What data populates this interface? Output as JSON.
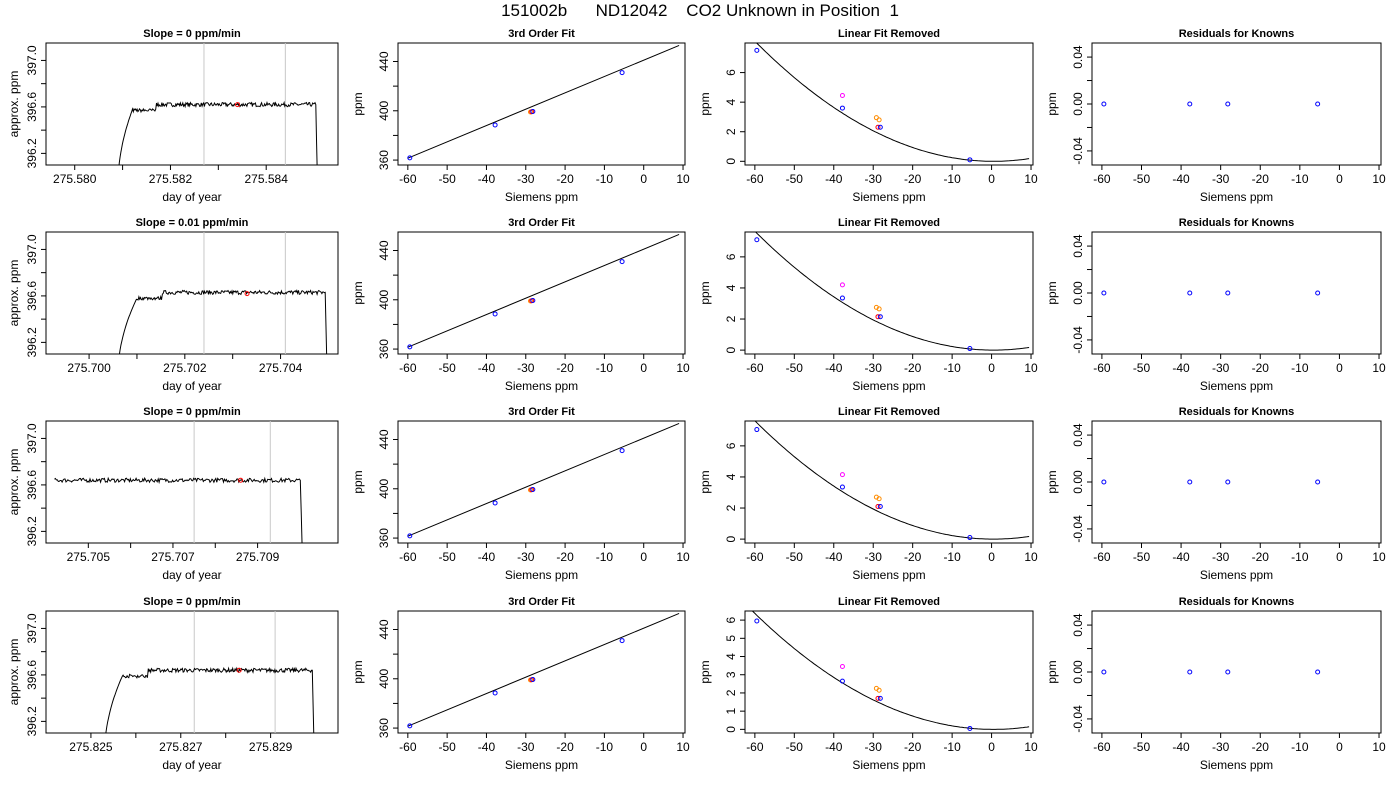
{
  "title": "151002b      ND12042    CO2 Unknown in Position  1",
  "colors": {
    "trace": "#000000",
    "vline": "#c8c8c8",
    "red": "#ff0000",
    "blue": "#0000ff",
    "magenta": "#ff00ff",
    "orange": "#ff8c00"
  },
  "chart_data": [
    {
      "type": "line",
      "row": 1,
      "panel": "trace",
      "title": "Slope =  0  ppm/min",
      "xlabel": "day of year",
      "ylabel": "approx. ppm",
      "xlim": [
        275.5794,
        275.5855
      ],
      "ylim": [
        396.1,
        397.15
      ],
      "xticks": [
        "275.580",
        "275.582",
        "275.584"
      ],
      "yticks": [
        "396.2",
        "396.6",
        "397.0"
      ],
      "vlines": [
        275.5827,
        275.5844
      ],
      "start": 275.5809,
      "end": 275.5851,
      "plateau": 396.62,
      "rise_end": 275.5812,
      "highlight": [
        275.5834,
        396.62
      ]
    },
    {
      "type": "line",
      "row": 1,
      "panel": "fit",
      "title": "3rd Order Fit",
      "xlabel": "Siemens ppm",
      "ylabel": "ppm",
      "xlim": [
        -62.5,
        10.5
      ],
      "ylim": [
        356,
        455
      ],
      "xticks": [
        "-60",
        "-50",
        "-40",
        "-30",
        "-20",
        "-10",
        "0",
        "10"
      ],
      "yticks": [
        "360",
        "400",
        "440"
      ],
      "line": [
        [
          -60,
          361.5
        ],
        [
          9,
          453
        ]
      ],
      "points": [
        {
          "x": -59.5,
          "y": 361.8,
          "color": "blue"
        },
        {
          "x": -37.8,
          "y": 388.5,
          "color": "blue"
        },
        {
          "x": -28.8,
          "y": 399.0,
          "color": "orange"
        },
        {
          "x": -28.5,
          "y": 399.2,
          "color": "red"
        },
        {
          "x": -28.2,
          "y": 399.4,
          "color": "blue"
        },
        {
          "x": -5.5,
          "y": 431.0,
          "color": "blue"
        }
      ]
    },
    {
      "type": "line",
      "row": 1,
      "panel": "linear",
      "title": "Linear Fit Removed",
      "xlabel": "Siemens ppm",
      "ylabel": "ppm",
      "xlim": [
        -62.5,
        10.5
      ],
      "ylim": [
        -0.25,
        8.0
      ],
      "xticks": [
        "-60",
        "-50",
        "-40",
        "-30",
        "-20",
        "-10",
        "0",
        "10"
      ],
      "yticks": [
        "0",
        "2",
        "4",
        "6"
      ],
      "curve": {
        "a": 0.00222,
        "h": 0.5,
        "k": 0.0
      },
      "points": [
        {
          "x": -59.5,
          "y": 7.5,
          "color": "blue"
        },
        {
          "x": -37.8,
          "y": 4.45,
          "color": "magenta"
        },
        {
          "x": -37.8,
          "y": 3.6,
          "color": "blue"
        },
        {
          "x": -29.2,
          "y": 2.95,
          "color": "orange"
        },
        {
          "x": -28.5,
          "y": 2.8,
          "color": "orange"
        },
        {
          "x": -28.8,
          "y": 2.3,
          "color": "red"
        },
        {
          "x": -28.2,
          "y": 2.3,
          "color": "blue"
        },
        {
          "x": -5.5,
          "y": 0.1,
          "color": "blue"
        }
      ]
    },
    {
      "type": "scatter",
      "row": 1,
      "panel": "resid",
      "title": "Residuals for Knowns",
      "xlabel": "Siemens ppm",
      "ylabel": "ppm",
      "xlim": [
        -62.5,
        10.5
      ],
      "ylim": [
        -0.052,
        0.052
      ],
      "xticks": [
        "-60",
        "-50",
        "-40",
        "-30",
        "-20",
        "-10",
        "0",
        "10"
      ],
      "yticks": [
        "-0.04",
        "0.00",
        "0.04"
      ],
      "points": [
        {
          "x": -59.5,
          "y": 0,
          "color": "blue"
        },
        {
          "x": -37.8,
          "y": 0,
          "color": "blue"
        },
        {
          "x": -28.2,
          "y": 0,
          "color": "blue"
        },
        {
          "x": -5.5,
          "y": 0,
          "color": "blue"
        }
      ]
    },
    {
      "type": "line",
      "row": 2,
      "panel": "trace",
      "title": "Slope =  0.01  ppm/min",
      "xlabel": "day of year",
      "ylabel": "approx. ppm",
      "xlim": [
        275.6991,
        275.7052
      ],
      "ylim": [
        396.1,
        397.15
      ],
      "xticks": [
        "275.700",
        "275.702",
        "275.704"
      ],
      "yticks": [
        "396.2",
        "396.6",
        "397.0"
      ],
      "vlines": [
        275.7024,
        275.7041
      ],
      "start": 275.7006,
      "end": 275.705,
      "plateau": 396.63,
      "rise_end": 275.701,
      "highlight": [
        275.7033,
        396.62
      ]
    },
    {
      "type": "line",
      "row": 2,
      "panel": "fit",
      "title": "3rd Order Fit",
      "xlabel": "Siemens ppm",
      "ylabel": "ppm",
      "xlim": [
        -62.5,
        10.5
      ],
      "ylim": [
        356,
        455
      ],
      "xticks": [
        "-60",
        "-50",
        "-40",
        "-30",
        "-20",
        "-10",
        "0",
        "10"
      ],
      "yticks": [
        "360",
        "400",
        "440"
      ],
      "line": [
        [
          -60,
          361.5
        ],
        [
          9,
          453
        ]
      ],
      "points": [
        {
          "x": -59.5,
          "y": 361.8,
          "color": "blue"
        },
        {
          "x": -37.8,
          "y": 388.5,
          "color": "blue"
        },
        {
          "x": -28.8,
          "y": 399.0,
          "color": "orange"
        },
        {
          "x": -28.5,
          "y": 399.2,
          "color": "red"
        },
        {
          "x": -28.2,
          "y": 399.4,
          "color": "blue"
        },
        {
          "x": -5.5,
          "y": 431.0,
          "color": "blue"
        }
      ]
    },
    {
      "type": "line",
      "row": 2,
      "panel": "linear",
      "title": "Linear Fit Removed",
      "xlabel": "Siemens ppm",
      "ylabel": "ppm",
      "xlim": [
        -62.5,
        10.5
      ],
      "ylim": [
        -0.25,
        7.6
      ],
      "xticks": [
        "-60",
        "-50",
        "-40",
        "-30",
        "-20",
        "-10",
        "0",
        "10"
      ],
      "yticks": [
        "0",
        "2",
        "4",
        "6"
      ],
      "curve": {
        "a": 0.00209,
        "h": 0.5,
        "k": 0.0
      },
      "points": [
        {
          "x": -59.5,
          "y": 7.1,
          "color": "blue"
        },
        {
          "x": -37.8,
          "y": 4.2,
          "color": "magenta"
        },
        {
          "x": -37.8,
          "y": 3.35,
          "color": "blue"
        },
        {
          "x": -29.2,
          "y": 2.75,
          "color": "orange"
        },
        {
          "x": -28.5,
          "y": 2.65,
          "color": "orange"
        },
        {
          "x": -28.8,
          "y": 2.15,
          "color": "red"
        },
        {
          "x": -28.2,
          "y": 2.15,
          "color": "blue"
        },
        {
          "x": -5.5,
          "y": 0.1,
          "color": "blue"
        }
      ]
    },
    {
      "type": "scatter",
      "row": 2,
      "panel": "resid",
      "title": "Residuals for Knowns",
      "xlabel": "Siemens ppm",
      "ylabel": "ppm",
      "xlim": [
        -62.5,
        10.5
      ],
      "ylim": [
        -0.052,
        0.052
      ],
      "xticks": [
        "-60",
        "-50",
        "-40",
        "-30",
        "-20",
        "-10",
        "0",
        "10"
      ],
      "yticks": [
        "-0.04",
        "0.00",
        "0.04"
      ],
      "points": [
        {
          "x": -59.5,
          "y": 0,
          "color": "blue"
        },
        {
          "x": -37.8,
          "y": 0,
          "color": "blue"
        },
        {
          "x": -28.2,
          "y": 0,
          "color": "blue"
        },
        {
          "x": -5.5,
          "y": 0,
          "color": "blue"
        }
      ]
    },
    {
      "type": "line",
      "row": 3,
      "panel": "trace",
      "title": "Slope =  0  ppm/min",
      "xlabel": "day of year",
      "ylabel": "approx. ppm",
      "xlim": [
        275.704,
        275.7109
      ],
      "ylim": [
        396.1,
        397.15
      ],
      "xticks": [
        "275.705",
        "275.707",
        "275.709"
      ],
      "yticks": [
        "396.2",
        "396.6",
        "397.0"
      ],
      "vlines": [
        275.7075,
        275.7093
      ],
      "start": 275.7042,
      "end": 275.7101,
      "plateau": 396.64,
      "rise_end": null,
      "highlight": [
        275.7086,
        396.64
      ]
    },
    {
      "type": "line",
      "row": 3,
      "panel": "fit",
      "title": "3rd Order Fit",
      "xlabel": "Siemens ppm",
      "ylabel": "ppm",
      "xlim": [
        -62.5,
        10.5
      ],
      "ylim": [
        356,
        455
      ],
      "xticks": [
        "-60",
        "-50",
        "-40",
        "-30",
        "-20",
        "-10",
        "0",
        "10"
      ],
      "yticks": [
        "360",
        "400",
        "440"
      ],
      "line": [
        [
          -60,
          361.5
        ],
        [
          9,
          453
        ]
      ],
      "points": [
        {
          "x": -59.5,
          "y": 361.8,
          "color": "blue"
        },
        {
          "x": -37.8,
          "y": 388.5,
          "color": "blue"
        },
        {
          "x": -28.8,
          "y": 399.0,
          "color": "orange"
        },
        {
          "x": -28.5,
          "y": 399.2,
          "color": "red"
        },
        {
          "x": -28.2,
          "y": 399.4,
          "color": "blue"
        },
        {
          "x": -5.5,
          "y": 431.0,
          "color": "blue"
        }
      ]
    },
    {
      "type": "line",
      "row": 3,
      "panel": "linear",
      "title": "Linear Fit Removed",
      "xlabel": "Siemens ppm",
      "ylabel": "ppm",
      "xlim": [
        -62.5,
        10.5
      ],
      "ylim": [
        -0.25,
        7.6
      ],
      "xticks": [
        "-60",
        "-50",
        "-40",
        "-30",
        "-20",
        "-10",
        "0",
        "10"
      ],
      "yticks": [
        "0",
        "2",
        "4",
        "6"
      ],
      "curve": {
        "a": 0.00208,
        "h": 0.5,
        "k": 0.0
      },
      "points": [
        {
          "x": -59.5,
          "y": 7.05,
          "color": "blue"
        },
        {
          "x": -37.8,
          "y": 4.15,
          "color": "magenta"
        },
        {
          "x": -37.8,
          "y": 3.35,
          "color": "blue"
        },
        {
          "x": -29.2,
          "y": 2.7,
          "color": "orange"
        },
        {
          "x": -28.5,
          "y": 2.6,
          "color": "orange"
        },
        {
          "x": -28.8,
          "y": 2.1,
          "color": "red"
        },
        {
          "x": -28.2,
          "y": 2.1,
          "color": "blue"
        },
        {
          "x": -5.5,
          "y": 0.1,
          "color": "blue"
        }
      ]
    },
    {
      "type": "scatter",
      "row": 3,
      "panel": "resid",
      "title": "Residuals for Knowns",
      "xlabel": "Siemens ppm",
      "ylabel": "ppm",
      "xlim": [
        -62.5,
        10.5
      ],
      "ylim": [
        -0.052,
        0.052
      ],
      "xticks": [
        "-60",
        "-50",
        "-40",
        "-30",
        "-20",
        "-10",
        "0",
        "10"
      ],
      "yticks": [
        "-0.04",
        "0.00",
        "0.04"
      ],
      "points": [
        {
          "x": -59.5,
          "y": 0,
          "color": "blue"
        },
        {
          "x": -37.8,
          "y": 0,
          "color": "blue"
        },
        {
          "x": -28.2,
          "y": 0,
          "color": "blue"
        },
        {
          "x": -5.5,
          "y": 0,
          "color": "blue"
        }
      ]
    },
    {
      "type": "line",
      "row": 4,
      "panel": "trace",
      "title": "Slope =  0  ppm/min",
      "xlabel": "day of year",
      "ylabel": "approx. ppm",
      "xlim": [
        275.824,
        275.8305
      ],
      "ylim": [
        396.1,
        397.15
      ],
      "xticks": [
        "275.825",
        "275.827",
        "275.829"
      ],
      "yticks": [
        "396.2",
        "396.6",
        "397.0"
      ],
      "vlines": [
        275.8273,
        275.8291
      ],
      "start": 275.8253,
      "end": 275.83,
      "plateau": 396.64,
      "rise_end": 275.8257,
      "highlight": [
        275.8283,
        396.64
      ]
    },
    {
      "type": "line",
      "row": 4,
      "panel": "fit",
      "title": "3rd Order Fit",
      "xlabel": "Siemens ppm",
      "ylabel": "ppm",
      "xlim": [
        -62.5,
        10.5
      ],
      "ylim": [
        356,
        455
      ],
      "xticks": [
        "-60",
        "-50",
        "-40",
        "-30",
        "-20",
        "-10",
        "0",
        "10"
      ],
      "yticks": [
        "360",
        "400",
        "440"
      ],
      "line": [
        [
          -60,
          361.5
        ],
        [
          9,
          453
        ]
      ],
      "points": [
        {
          "x": -59.5,
          "y": 361.8,
          "color": "blue"
        },
        {
          "x": -37.8,
          "y": 388.5,
          "color": "blue"
        },
        {
          "x": -28.8,
          "y": 399.0,
          "color": "orange"
        },
        {
          "x": -28.5,
          "y": 399.2,
          "color": "red"
        },
        {
          "x": -28.2,
          "y": 399.4,
          "color": "blue"
        },
        {
          "x": -5.5,
          "y": 431.0,
          "color": "blue"
        }
      ]
    },
    {
      "type": "line",
      "row": 4,
      "panel": "linear",
      "title": "Linear Fit Removed",
      "xlabel": "Siemens ppm",
      "ylabel": "ppm",
      "xlim": [
        -62.5,
        10.5
      ],
      "ylim": [
        -0.2,
        6.5
      ],
      "xticks": [
        "-60",
        "-50",
        "-40",
        "-30",
        "-20",
        "-10",
        "0",
        "10"
      ],
      "yticks": [
        "0",
        "1",
        "2",
        "3",
        "4",
        "5",
        "6"
      ],
      "curve": {
        "a": 0.00174,
        "h": 0.5,
        "k": 0.0
      },
      "points": [
        {
          "x": -59.5,
          "y": 5.95,
          "color": "blue"
        },
        {
          "x": -37.8,
          "y": 3.45,
          "color": "magenta"
        },
        {
          "x": -37.8,
          "y": 2.65,
          "color": "blue"
        },
        {
          "x": -29.2,
          "y": 2.25,
          "color": "orange"
        },
        {
          "x": -28.5,
          "y": 2.15,
          "color": "orange"
        },
        {
          "x": -28.8,
          "y": 1.7,
          "color": "red"
        },
        {
          "x": -28.2,
          "y": 1.7,
          "color": "blue"
        },
        {
          "x": -5.5,
          "y": 0.05,
          "color": "blue"
        }
      ]
    },
    {
      "type": "scatter",
      "row": 4,
      "panel": "resid",
      "title": "Residuals for Knowns",
      "xlabel": "Siemens ppm",
      "ylabel": "ppm",
      "xlim": [
        -62.5,
        10.5
      ],
      "ylim": [
        -0.052,
        0.052
      ],
      "xticks": [
        "-60",
        "-50",
        "-40",
        "-30",
        "-20",
        "-10",
        "0",
        "10"
      ],
      "yticks": [
        "-0.04",
        "0.00",
        "0.04"
      ],
      "points": [
        {
          "x": -59.5,
          "y": 0,
          "color": "blue"
        },
        {
          "x": -37.8,
          "y": 0,
          "color": "blue"
        },
        {
          "x": -28.2,
          "y": 0,
          "color": "blue"
        },
        {
          "x": -5.5,
          "y": 0,
          "color": "blue"
        }
      ]
    }
  ]
}
